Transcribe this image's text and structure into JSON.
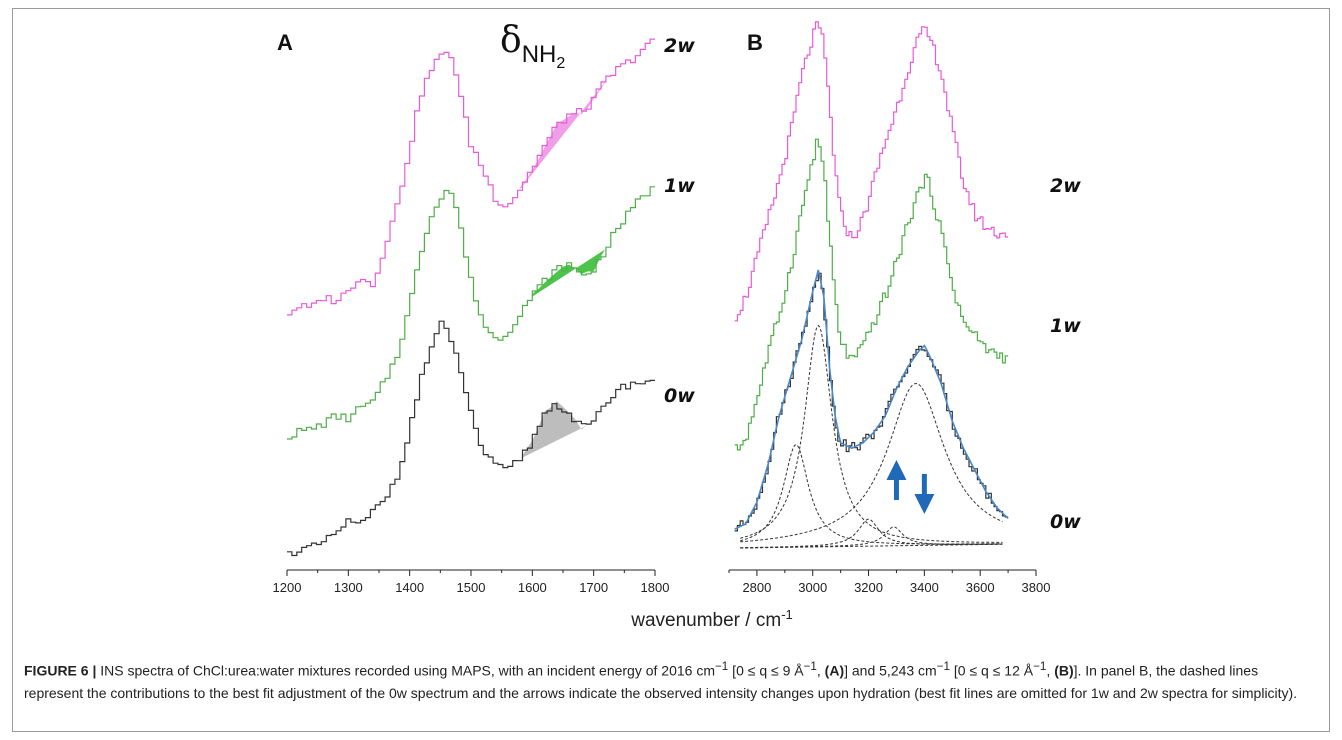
{
  "figure": {
    "xlabel": "wavenumber / cm-1",
    "caption": {
      "label": "FIGURE 6 |",
      "text_1": " INS spectra of ChCl:urea:water mixtures recorded using MAPS, with an incident energy of 2016 cm",
      "sup_1": "−1",
      "text_2": " [0 ≤ q ≤ 9 Å",
      "sup_2": "−1",
      "text_3": ", ",
      "bold_A": "(A)",
      "text_4": "] and 5,243 cm",
      "sup_3": "−1",
      "text_5": " [0 ≤ q ≤ 12 Å",
      "sup_4": "−1",
      "text_6": ", ",
      "bold_B": "(B)",
      "text_7": "]. In panel B, the dashed lines represent the contributions to the best fit adjustment of the 0w spectrum and the arrows indicate the observed intensity changes upon hydration (best fit lines are omitted for 1w and 2w spectra for simplicity)."
    },
    "colors": {
      "w2": "#e85bd8",
      "w1": "#4fae48",
      "w0": "#333333",
      "fit": "#4a88c8",
      "arrow": "#1f69b8",
      "fill_w2": "#f09ee8",
      "fill_w1": "#4cc44c",
      "fill_w0": "#bdbdbd"
    }
  },
  "chart_data": [
    {
      "type": "line",
      "panel": "A",
      "annotation": "δNH2",
      "xlim": [
        1200,
        1800
      ],
      "xticks": [
        1200,
        1300,
        1400,
        1500,
        1600,
        1700,
        1800
      ],
      "series": [
        {
          "name": "2w",
          "x": [
            1200,
            1220,
            1240,
            1260,
            1280,
            1300,
            1320,
            1340,
            1360,
            1380,
            1400,
            1420,
            1440,
            1460,
            1470,
            1480,
            1500,
            1520,
            1540,
            1560,
            1580,
            1600,
            1620,
            1640,
            1660,
            1680,
            1700,
            1720,
            1740,
            1760,
            1780,
            1800
          ],
          "y": [
            0.04,
            0.07,
            0.06,
            0.1,
            0.09,
            0.12,
            0.18,
            0.14,
            0.28,
            0.42,
            0.62,
            0.82,
            0.92,
            0.96,
            0.95,
            0.84,
            0.64,
            0.55,
            0.45,
            0.42,
            0.48,
            0.55,
            0.63,
            0.7,
            0.74,
            0.75,
            0.79,
            0.86,
            0.9,
            0.93,
            0.97,
            1.0
          ]
        },
        {
          "name": "1w",
          "x": [
            1200,
            1220,
            1240,
            1260,
            1280,
            1300,
            1320,
            1340,
            1360,
            1380,
            1400,
            1420,
            1440,
            1460,
            1470,
            1480,
            1500,
            1520,
            1540,
            1560,
            1580,
            1600,
            1620,
            1640,
            1660,
            1680,
            1700,
            1720,
            1740,
            1760,
            1780,
            1800
          ],
          "y": [
            0.03,
            0.05,
            0.06,
            0.08,
            0.11,
            0.1,
            0.14,
            0.16,
            0.24,
            0.34,
            0.52,
            0.74,
            0.9,
            0.96,
            0.95,
            0.86,
            0.62,
            0.46,
            0.4,
            0.42,
            0.5,
            0.56,
            0.62,
            0.66,
            0.68,
            0.64,
            0.66,
            0.74,
            0.82,
            0.88,
            0.94,
            0.97
          ]
        },
        {
          "name": "0w",
          "x": [
            1200,
            1220,
            1240,
            1260,
            1280,
            1300,
            1320,
            1340,
            1360,
            1380,
            1400,
            1420,
            1440,
            1450,
            1460,
            1480,
            1500,
            1520,
            1540,
            1560,
            1580,
            1600,
            1620,
            1640,
            1660,
            1680,
            1700,
            1720,
            1740,
            1760,
            1780,
            1800
          ],
          "y": [
            0.03,
            0.05,
            0.06,
            0.08,
            0.12,
            0.17,
            0.15,
            0.21,
            0.26,
            0.36,
            0.54,
            0.78,
            0.92,
            1.0,
            0.96,
            0.84,
            0.62,
            0.46,
            0.4,
            0.38,
            0.43,
            0.5,
            0.62,
            0.66,
            0.62,
            0.56,
            0.58,
            0.66,
            0.72,
            0.74,
            0.75,
            0.76
          ]
        }
      ]
    },
    {
      "type": "line",
      "panel": "B",
      "xlim": [
        2700,
        3800
      ],
      "xticks": [
        2800,
        3000,
        3200,
        3400,
        3600,
        3800
      ],
      "series": [
        {
          "name": "2w",
          "x": [
            2720,
            2760,
            2800,
            2840,
            2880,
            2920,
            2960,
            3000,
            3020,
            3040,
            3060,
            3080,
            3100,
            3140,
            3180,
            3220,
            3260,
            3300,
            3340,
            3380,
            3400,
            3420,
            3460,
            3500,
            3540,
            3580,
            3620,
            3660,
            3700
          ],
          "y": [
            0.1,
            0.16,
            0.28,
            0.4,
            0.52,
            0.66,
            0.84,
            0.96,
            1.0,
            0.94,
            0.76,
            0.56,
            0.42,
            0.34,
            0.4,
            0.52,
            0.64,
            0.74,
            0.86,
            0.96,
            0.98,
            0.96,
            0.86,
            0.68,
            0.52,
            0.42,
            0.38,
            0.36,
            0.36
          ]
        },
        {
          "name": "1w",
          "x": [
            2720,
            2760,
            2800,
            2840,
            2880,
            2920,
            2960,
            3000,
            3020,
            3040,
            3060,
            3080,
            3100,
            3140,
            3180,
            3220,
            3260,
            3300,
            3340,
            3380,
            3400,
            3420,
            3460,
            3500,
            3540,
            3580,
            3620,
            3660,
            3700
          ],
          "y": [
            0.04,
            0.08,
            0.2,
            0.34,
            0.46,
            0.6,
            0.78,
            0.94,
            1.0,
            0.92,
            0.7,
            0.52,
            0.38,
            0.32,
            0.36,
            0.44,
            0.52,
            0.62,
            0.74,
            0.84,
            0.88,
            0.86,
            0.72,
            0.56,
            0.44,
            0.4,
            0.36,
            0.34,
            0.33
          ]
        },
        {
          "name": "0w",
          "x": [
            2720,
            2760,
            2800,
            2840,
            2880,
            2920,
            2960,
            3000,
            3020,
            3040,
            3060,
            3080,
            3100,
            3140,
            3180,
            3220,
            3260,
            3300,
            3340,
            3380,
            3400,
            3420,
            3460,
            3500,
            3540,
            3580,
            3620,
            3660,
            3700
          ],
          "y": [
            0.04,
            0.06,
            0.14,
            0.28,
            0.46,
            0.6,
            0.74,
            0.92,
            1.0,
            0.9,
            0.64,
            0.46,
            0.36,
            0.34,
            0.36,
            0.4,
            0.46,
            0.56,
            0.64,
            0.7,
            0.72,
            0.68,
            0.58,
            0.44,
            0.34,
            0.26,
            0.18,
            0.12,
            0.08
          ]
        }
      ],
      "fit_components": [
        {
          "center": 2940,
          "width": 55,
          "amplitude": 0.38
        },
        {
          "center": 3020,
          "width": 60,
          "amplitude": 0.82
        },
        {
          "center": 3200,
          "width": 45,
          "amplitude": 0.1
        },
        {
          "center": 3290,
          "width": 40,
          "amplitude": 0.07
        },
        {
          "center": 3370,
          "width": 125,
          "amplitude": 0.6
        }
      ],
      "arrows": [
        {
          "x": 3300,
          "direction": "up"
        },
        {
          "x": 3400,
          "direction": "down"
        }
      ]
    }
  ]
}
